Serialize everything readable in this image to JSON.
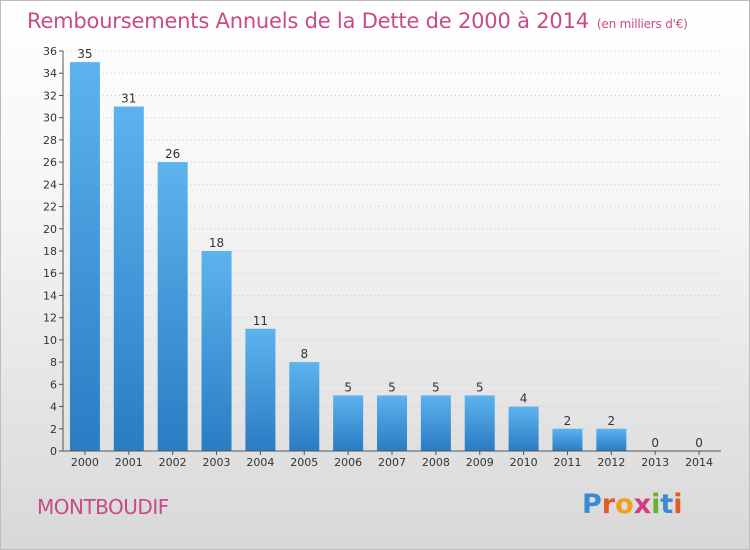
{
  "title": "Remboursements Annuels de la Dette de 2000 à 2014",
  "subtitle": "(en milliers d'€)",
  "commune": "MONTBOUDIF",
  "logo": {
    "text": "Proxiti",
    "letters": [
      "P",
      "r",
      "o",
      "x",
      "i",
      "t",
      "i"
    ],
    "colors": [
      "#3b8ad6",
      "#e05a2a",
      "#f2a01b",
      "#d23c7e",
      "#67b12f",
      "#3b8ad6",
      "#e05a2a"
    ]
  },
  "colors": {
    "title": "#c84b86",
    "bar_top": "#5db3ee",
    "bar_bottom": "#2a7cc3",
    "axis": "#555555",
    "grid": "#cccccc"
  },
  "chart_data": {
    "type": "bar",
    "categories": [
      "2000",
      "2001",
      "2002",
      "2003",
      "2004",
      "2005",
      "2006",
      "2007",
      "2008",
      "2009",
      "2010",
      "2011",
      "2012",
      "2013",
      "2014"
    ],
    "values": [
      35,
      31,
      26,
      18,
      11,
      8,
      5,
      5,
      5,
      5,
      4,
      2,
      2,
      0,
      0
    ],
    "ylim": [
      0,
      36
    ],
    "yticks": [
      0,
      2,
      4,
      6,
      8,
      10,
      12,
      14,
      16,
      18,
      20,
      22,
      24,
      26,
      28,
      30,
      32,
      34,
      36
    ],
    "grid": "dotted horizontal"
  }
}
